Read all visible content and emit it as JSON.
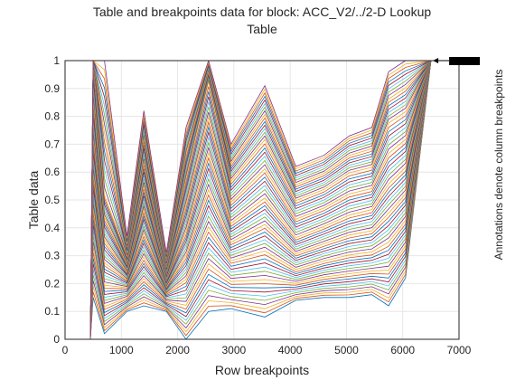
{
  "chart_data": {
    "type": "line",
    "title_line1": "Table and breakpoints data for block: ACC_V2/../2-D Lookup",
    "title_line2": "Table",
    "xlabel": "Row breakpoints",
    "ylabel": "Table data",
    "right_label": "Annotations denote column breakpoints",
    "xlim": [
      0,
      7000
    ],
    "ylim": [
      0,
      1
    ],
    "xticks": [
      "0",
      "1000",
      "2000",
      "3000",
      "4000",
      "5000",
      "6000",
      "7000"
    ],
    "yticks": [
      "0",
      "0.1",
      "0.2",
      "0.3",
      "0.4",
      "0.5",
      "0.6",
      "0.7",
      "0.8",
      "0.9",
      "1"
    ],
    "grid": true,
    "legend": "none",
    "annotation_x": 6600,
    "annotation_y": 1,
    "x": [
      0,
      450,
      500,
      700,
      1100,
      1400,
      1800,
      2150,
      2550,
      2950,
      3550,
      4100,
      4600,
      5050,
      5450,
      5750,
      6050,
      6500
    ],
    "series_count": 60,
    "series_colors": [
      "#0072BD",
      "#D95319",
      "#EDB120",
      "#7E2F8E",
      "#77AC30",
      "#4DBEEE",
      "#A2142F"
    ],
    "series": [
      {
        "values": [
          0,
          0,
          0.15,
          0.02,
          0.1,
          0.12,
          0.1,
          0.0,
          0.1,
          0.11,
          0.08,
          0.14,
          0.15,
          0.15,
          0.16,
          0.12,
          0.22,
          1
        ]
      },
      {
        "values": [
          0,
          0,
          0.45,
          0.18,
          0.18,
          0.28,
          0.16,
          0.2,
          0.38,
          0.27,
          0.3,
          0.24,
          0.27,
          0.29,
          0.3,
          0.33,
          0.41,
          1
        ]
      },
      {
        "values": [
          0,
          0,
          0.72,
          0.35,
          0.24,
          0.46,
          0.21,
          0.38,
          0.66,
          0.41,
          0.5,
          0.36,
          0.4,
          0.44,
          0.46,
          0.55,
          0.61,
          1
        ]
      },
      {
        "values": [
          0,
          0,
          1.0,
          0.52,
          0.3,
          0.64,
          0.26,
          0.58,
          0.93,
          0.57,
          0.72,
          0.5,
          0.54,
          0.6,
          0.62,
          0.78,
          0.82,
          1
        ]
      },
      {
        "values": [
          0,
          0,
          1.0,
          1.0,
          0.37,
          0.82,
          0.31,
          0.76,
          1.0,
          0.7,
          0.91,
          0.62,
          0.66,
          0.73,
          0.76,
          0.96,
          1.0,
          1
        ]
      }
    ]
  }
}
